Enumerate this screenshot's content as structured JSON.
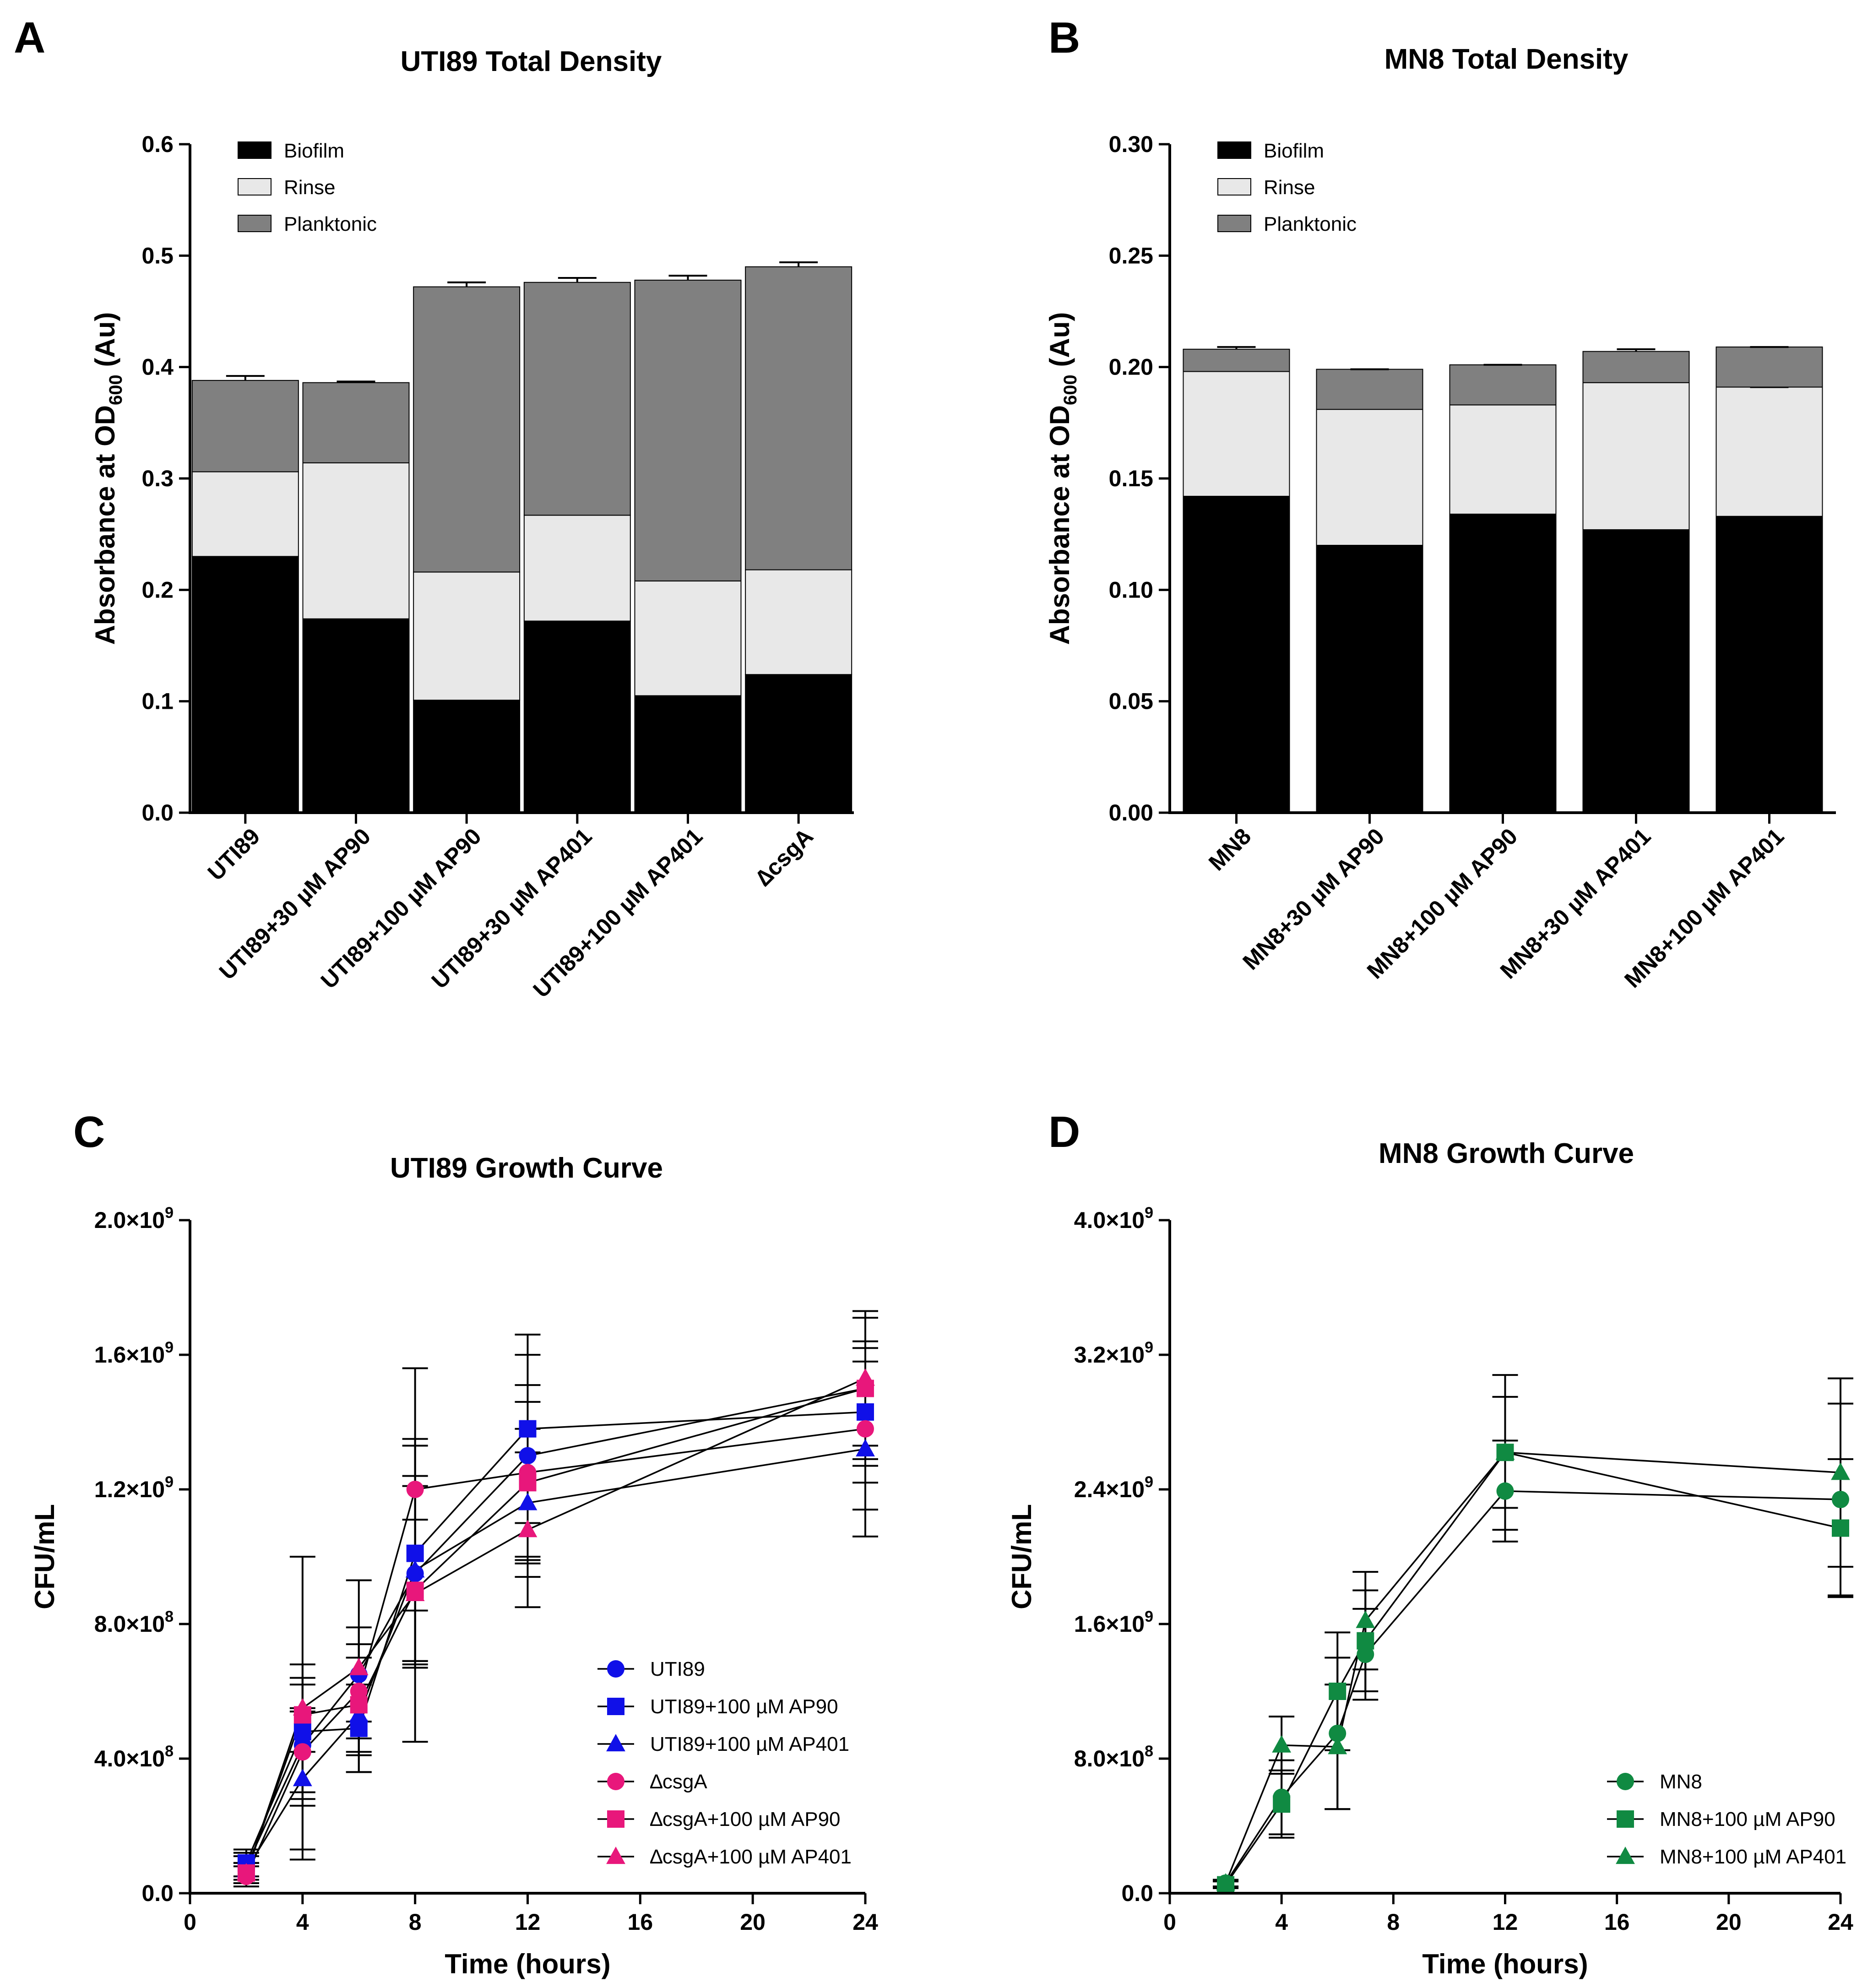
{
  "chart_data": [
    {
      "panel": "A",
      "type": "bar",
      "stacked": true,
      "title": "UTI89 Total Density",
      "ylabel": "Absorbance at OD",
      "ylabel_subscript": "600",
      "ylabel_unit": " (Au)",
      "xlabel": "",
      "ylim": [
        0,
        0.6
      ],
      "yticks": [
        0,
        0.1,
        0.2,
        0.3,
        0.4,
        0.5,
        0.6
      ],
      "ytick_labels": [
        "0.0",
        "0.1",
        "0.2",
        "0.3",
        "0.4",
        "0.5",
        "0.6"
      ],
      "categories": [
        "UTI89",
        "UTI89+30 µM AP90",
        "UTI89+100 µM AP90",
        "UTI89+30 µM AP401",
        "UTI89+100 µM AP401",
        "∆csgA"
      ],
      "series": [
        {
          "name": "Biofilm",
          "color": "#000000",
          "values": [
            0.23,
            0.174,
            0.101,
            0.172,
            0.105,
            0.124
          ],
          "errors": [
            0.016,
            0.008,
            0.017,
            0.021,
            0.017,
            0.031
          ]
        },
        {
          "name": "Rinse",
          "color": "#e8e8e8",
          "values": [
            0.076,
            0.14,
            0.115,
            0.095,
            0.103,
            0.094
          ],
          "errors": [
            0.002,
            0.002,
            0.001,
            0.001,
            0.003,
            0.003
          ]
        },
        {
          "name": "Planktonic",
          "color": "#808080",
          "values": [
            0.082,
            0.072,
            0.256,
            0.209,
            0.27,
            0.272
          ],
          "errors": [
            0.004,
            0.001,
            0.004,
            0.004,
            0.004,
            0.004
          ]
        }
      ],
      "legend": "top-left"
    },
    {
      "panel": "B",
      "type": "bar",
      "stacked": true,
      "title": "MN8 Total Density",
      "ylabel": "Absorbance at OD",
      "ylabel_subscript": "600",
      "ylabel_unit": " (Au)",
      "xlabel": "",
      "ylim": [
        0,
        0.3
      ],
      "yticks": [
        0,
        0.05,
        0.1,
        0.15,
        0.2,
        0.25,
        0.3
      ],
      "ytick_labels": [
        "0.00",
        "0.05",
        "0.10",
        "0.15",
        "0.20",
        "0.25",
        "0.30"
      ],
      "categories": [
        "MN8",
        "MN8+30 µM AP90",
        "MN8+100 µM AP90",
        "MN8+30 µM AP401",
        "MN8+100 µM AP401"
      ],
      "series": [
        {
          "name": "Biofilm",
          "color": "#000000",
          "values": [
            0.142,
            0.12,
            0.134,
            0.127,
            0.133
          ],
          "errors": [
            0.01,
            0.007,
            0.005,
            0.005,
            0.001
          ]
        },
        {
          "name": "Rinse",
          "color": "#e8e8e8",
          "values": [
            0.056,
            0.061,
            0.049,
            0.066,
            0.058
          ],
          "errors": [
            0.004,
            0.002,
            0.001,
            0.001,
            0.0
          ]
        },
        {
          "name": "Planktonic",
          "color": "#808080",
          "values": [
            0.01,
            0.018,
            0.018,
            0.014,
            0.018
          ],
          "errors": [
            0.001,
            0.0,
            0.0,
            0.001,
            0.0
          ]
        }
      ],
      "legend": "top-left"
    },
    {
      "panel": "C",
      "type": "line",
      "title": "UTI89 Growth Curve",
      "xlabel": "Time (hours)",
      "ylabel": "CFU/mL",
      "xlim": [
        0,
        24
      ],
      "ylim": [
        0,
        2000000000
      ],
      "xticks": [
        0,
        4,
        8,
        12,
        16,
        20,
        24
      ],
      "yticks": [
        0,
        400000000,
        800000000,
        1200000000,
        1600000000,
        2000000000
      ],
      "ytick_labels": [
        {
          "base": "0.0",
          "exp": ""
        },
        {
          "base": "4.0×10",
          "exp": "8"
        },
        {
          "base": "8.0×10",
          "exp": "8"
        },
        {
          "base": "1.2×10",
          "exp": "9"
        },
        {
          "base": "1.6×10",
          "exp": "9"
        },
        {
          "base": "2.0×10",
          "exp": "9"
        }
      ],
      "x": [
        2,
        4,
        6,
        8,
        12,
        24
      ],
      "series": [
        {
          "name": "UTI89",
          "color": "#1010e8",
          "marker": "circle",
          "values": [
            80000000,
            440000000,
            650000000,
            950000000,
            1300000000,
            1500000000
          ],
          "errors": [
            40000000,
            180000000,
            140000000,
            260000000,
            300000000,
            230000000
          ]
        },
        {
          "name": "UTI89+100 µM AP90",
          "color": "#1010e8",
          "marker": "square",
          "values": [
            90000000,
            480000000,
            490000000,
            1010000000,
            1380000000,
            1430000000
          ],
          "errors": [
            40000000,
            200000000,
            130000000,
            340000000,
            280000000,
            210000000
          ]
        },
        {
          "name": "UTI89+100 µM AP401",
          "color": "#1010e8",
          "marker": "triangle",
          "values": [
            70000000,
            340000000,
            530000000,
            960000000,
            1160000000,
            1320000000
          ],
          "errors": [
            40000000,
            210000000,
            170000000,
            280000000,
            220000000,
            260000000
          ]
        },
        {
          "name": "∆csgA",
          "color": "#e8177b",
          "marker": "circle",
          "values": [
            50000000,
            420000000,
            600000000,
            1200000000,
            1250000000,
            1380000000
          ],
          "errors": [
            30000000,
            120000000,
            140000000,
            360000000,
            260000000,
            240000000
          ]
        },
        {
          "name": "∆csgA+100 µM AP90",
          "color": "#e8177b",
          "marker": "square",
          "values": [
            60000000,
            530000000,
            560000000,
            900000000,
            1220000000,
            1500000000
          ],
          "errors": [
            30000000,
            110000000,
            140000000,
            210000000,
            240000000,
            210000000
          ]
        },
        {
          "name": "∆csgA+100 µM AP401",
          "color": "#e8177b",
          "marker": "triangle",
          "values": [
            60000000,
            550000000,
            670000000,
            890000000,
            1080000000,
            1530000000
          ],
          "errors": [
            30000000,
            450000000,
            260000000,
            440000000,
            230000000,
            200000000
          ]
        }
      ],
      "legend": "bottom-right"
    },
    {
      "panel": "D",
      "type": "line",
      "title": "MN8 Growth Curve",
      "xlabel": "Time (hours)",
      "ylabel": "CFU/mL",
      "xlim": [
        0,
        24
      ],
      "ylim": [
        0,
        4000000000
      ],
      "xticks": [
        0,
        4,
        8,
        12,
        16,
        20,
        24
      ],
      "yticks": [
        0,
        800000000,
        1600000000,
        2400000000,
        3200000000,
        4000000000
      ],
      "ytick_labels": [
        {
          "base": "0.0",
          "exp": ""
        },
        {
          "base": "8.0×10",
          "exp": "8"
        },
        {
          "base": "1.6×10",
          "exp": "9"
        },
        {
          "base": "2.4×10",
          "exp": "9"
        },
        {
          "base": "3.2×10",
          "exp": "9"
        },
        {
          "base": "4.0×10",
          "exp": "9"
        }
      ],
      "x": [
        2,
        4,
        6,
        7,
        12,
        24
      ],
      "series": [
        {
          "name": "MN8",
          "color": "#108a42",
          "marker": "circle",
          "values": [
            60000000,
            570000000,
            950000000,
            1420000000,
            2390000000,
            2340000000
          ],
          "errors": [
            20000000,
            220000000,
            450000000,
            270000000,
            300000000,
            570000000
          ]
        },
        {
          "name": "MN8+100 µM AP90",
          "color": "#108a42",
          "marker": "square",
          "values": [
            50000000,
            530000000,
            1200000000,
            1500000000,
            2620000000,
            2170000000
          ],
          "errors": [
            20000000,
            200000000,
            350000000,
            300000000,
            460000000,
            410000000
          ]
        },
        {
          "name": "MN8+100 µM AP401",
          "color": "#108a42",
          "marker": "triangle",
          "values": [
            60000000,
            880000000,
            870000000,
            1620000000,
            2620000000,
            2500000000
          ],
          "errors": [
            20000000,
            170000000,
            370000000,
            290000000,
            330000000,
            560000000
          ]
        }
      ],
      "legend": "bottom-right"
    }
  ]
}
